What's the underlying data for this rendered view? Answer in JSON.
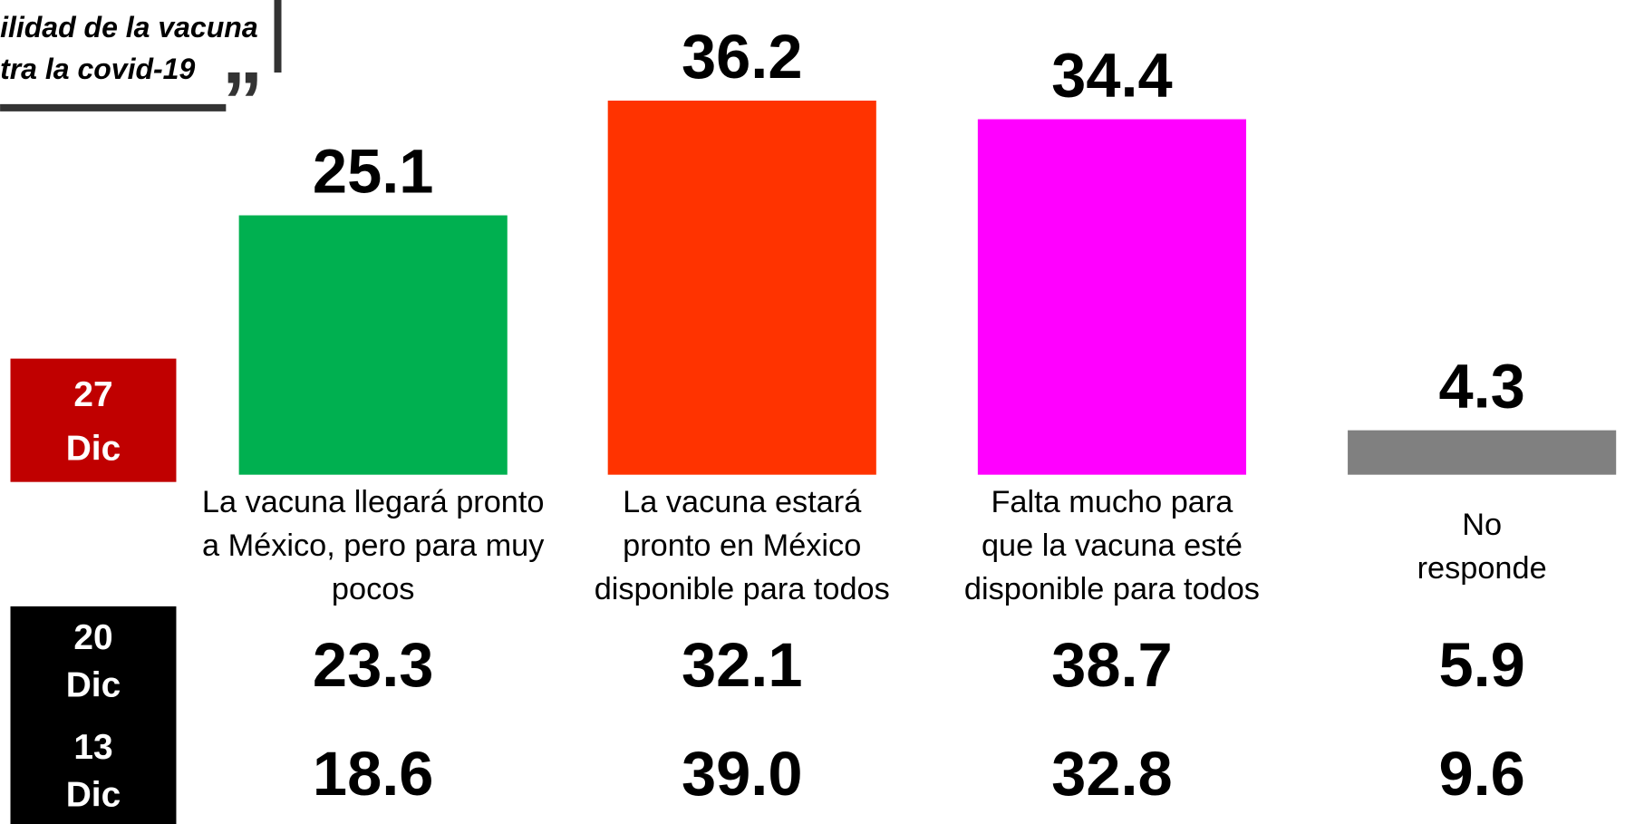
{
  "chart_data": {
    "type": "bar",
    "title_lines": [
      "ilidad de la vacuna",
      "tra  la covid-19"
    ],
    "categories": [
      [
        "La vacuna llegará pronto",
        "a México, pero para muy",
        "pocos"
      ],
      [
        "La vacuna estará",
        "pronto en México",
        "disponible para todos"
      ],
      [
        "Falta mucho para",
        "que la vacuna esté",
        "disponible para todos"
      ],
      [
        "No",
        "responde"
      ]
    ],
    "colors": [
      "#00b050",
      "#ff3300",
      "#ff00ff",
      "#808080"
    ],
    "series": [
      {
        "name": [
          "27",
          "Dic"
        ],
        "color": "#c00000",
        "values": [
          25.1,
          36.2,
          34.4,
          4.3
        ],
        "value_labels": [
          "25.1",
          "36.2",
          "34.4",
          "4.3"
        ]
      },
      {
        "name": [
          "20",
          "Dic"
        ],
        "color": "#000000",
        "values": [
          23.3,
          32.1,
          38.7,
          5.9
        ],
        "value_labels": [
          "23.3",
          "32.1",
          "38.7",
          "5.9"
        ]
      },
      {
        "name": [
          "13",
          "Dic"
        ],
        "color": "#000000",
        "values": [
          18.6,
          39.0,
          32.8,
          9.6
        ],
        "value_labels": [
          "18.6",
          "39.0",
          "32.8",
          "9.6"
        ]
      }
    ]
  }
}
